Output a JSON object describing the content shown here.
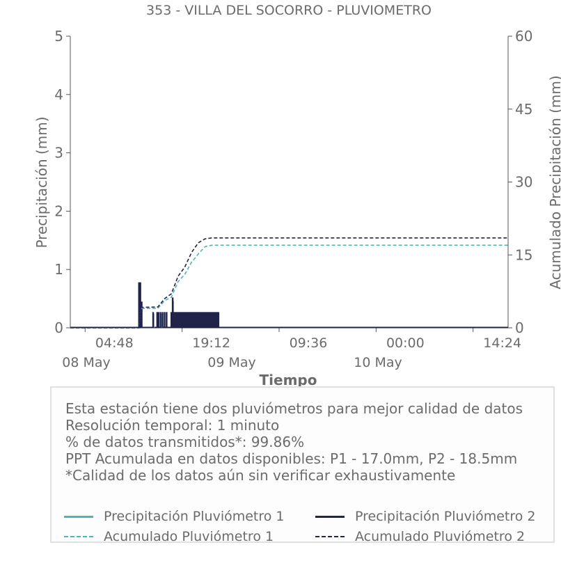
{
  "chart_data": {
    "type": "bar+line",
    "title": "353 - VILLA DEL SOCORRO - PLUVIOMETRO",
    "xlabel": "Tiempo",
    "ylabel_left": "Precipitación (mm)",
    "ylabel_right": "Acumulado Precipitación (mm)",
    "ylim_left": [
      0,
      5
    ],
    "ylim_right": [
      0,
      60
    ],
    "yticks_left": [
      "0",
      "1",
      "2",
      "3",
      "4",
      "5"
    ],
    "yticks_right": [
      "0",
      "15",
      "30",
      "45",
      "60"
    ],
    "xticks": [
      "04:48",
      "19:12",
      "09:36",
      "00:00",
      "14:24"
    ],
    "date_labels": [
      "08 May",
      "09 May",
      "10 May"
    ],
    "grid": false,
    "x_range_hours": [
      0,
      65
    ],
    "series": [
      {
        "name": "Precipitación Pluviómetro 1",
        "style": "bar",
        "color": "#4fb3bf",
        "points": [
          [
            10.4,
            0.72
          ],
          [
            12.4,
            0.24
          ],
          [
            13.1,
            0.24
          ],
          [
            13.5,
            0.24
          ],
          [
            14.0,
            0.24
          ],
          [
            15.3,
            0.46
          ],
          [
            15.7,
            0.24
          ],
          [
            16.0,
            0.24
          ],
          [
            16.4,
            0.24
          ],
          [
            16.8,
            0.24
          ],
          [
            17.2,
            0.24
          ],
          [
            17.6,
            0.24
          ],
          [
            18.0,
            0.24
          ],
          [
            18.4,
            0.24
          ],
          [
            18.8,
            0.24
          ],
          [
            19.2,
            0.24
          ],
          [
            19.6,
            0.24
          ],
          [
            20.0,
            0.24
          ],
          [
            20.4,
            0.24
          ],
          [
            20.8,
            0.24
          ],
          [
            21.2,
            0.24
          ],
          [
            21.6,
            0.24
          ],
          [
            22.0,
            0.24
          ]
        ]
      },
      {
        "name": "Precipitación Pluviómetro 2",
        "style": "bar",
        "color": "#20234a",
        "points": [
          [
            10.2,
            0.78
          ],
          [
            10.4,
            0.78
          ],
          [
            10.6,
            0.45
          ],
          [
            12.3,
            0.27
          ],
          [
            12.9,
            0.27
          ],
          [
            13.1,
            0.27
          ],
          [
            13.4,
            0.27
          ],
          [
            13.7,
            0.27
          ],
          [
            14.0,
            0.27
          ],
          [
            14.3,
            0.27
          ],
          [
            15.0,
            0.27
          ],
          [
            15.2,
            0.52
          ],
          [
            15.4,
            0.27
          ],
          [
            15.6,
            0.27
          ],
          [
            15.8,
            0.27
          ],
          [
            16.0,
            0.27
          ],
          [
            16.2,
            0.27
          ],
          [
            16.4,
            0.27
          ],
          [
            16.6,
            0.27
          ],
          [
            16.8,
            0.27
          ],
          [
            17.0,
            0.27
          ],
          [
            17.2,
            0.27
          ],
          [
            17.4,
            0.27
          ],
          [
            17.6,
            0.27
          ],
          [
            17.8,
            0.27
          ],
          [
            18.0,
            0.27
          ],
          [
            18.2,
            0.27
          ],
          [
            18.4,
            0.27
          ],
          [
            18.6,
            0.27
          ],
          [
            18.8,
            0.27
          ],
          [
            19.0,
            0.27
          ],
          [
            19.2,
            0.27
          ],
          [
            19.4,
            0.27
          ],
          [
            19.6,
            0.27
          ],
          [
            19.8,
            0.27
          ],
          [
            20.0,
            0.27
          ],
          [
            20.2,
            0.27
          ],
          [
            20.4,
            0.27
          ],
          [
            20.6,
            0.27
          ],
          [
            20.8,
            0.27
          ],
          [
            21.0,
            0.27
          ],
          [
            21.2,
            0.27
          ],
          [
            21.4,
            0.27
          ],
          [
            21.6,
            0.27
          ],
          [
            21.8,
            0.27
          ],
          [
            22.0,
            0.27
          ]
        ]
      },
      {
        "name": "Acumulado Pluviómetro 1",
        "style": "dashed",
        "color": "#4fb3bf",
        "points": [
          [
            0,
            0
          ],
          [
            10.2,
            0
          ],
          [
            10.4,
            4.0
          ],
          [
            13.0,
            4.0
          ],
          [
            14.0,
            5.6
          ],
          [
            15.0,
            6.3
          ],
          [
            16.0,
            9.5
          ],
          [
            17.0,
            11.0
          ],
          [
            18.0,
            13.5
          ],
          [
            19.0,
            15.2
          ],
          [
            20.0,
            16.7
          ],
          [
            21.0,
            17.0
          ],
          [
            65.0,
            17.0
          ]
        ]
      },
      {
        "name": "Acumulado Pluviómetro 2",
        "style": "dashed",
        "color": "#20234a",
        "points": [
          [
            0,
            0
          ],
          [
            10.2,
            0
          ],
          [
            10.4,
            4.2
          ],
          [
            13.0,
            4.3
          ],
          [
            14.0,
            6.0
          ],
          [
            15.0,
            7.0
          ],
          [
            16.0,
            10.6
          ],
          [
            17.0,
            12.5
          ],
          [
            18.0,
            15.5
          ],
          [
            19.0,
            17.5
          ],
          [
            20.0,
            18.3
          ],
          [
            21.0,
            18.5
          ],
          [
            65.0,
            18.5
          ]
        ]
      }
    ]
  },
  "info": {
    "lines": [
      "Esta estación tiene dos pluviómetros para mejor calidad de datos",
      "Resolución temporal: 1 minuto",
      "% de datos transmitidos*: 99.86%",
      "PPT Acumulada en datos disponibles: P1 - 17.0mm, P2 - 18.5mm",
      "*Calidad de los datos aún sin verificar exhaustivamente"
    ]
  },
  "legend": {
    "items": [
      {
        "label": "Precipitación Pluviómetro 1",
        "color": "#4fb3bf",
        "style": "solid"
      },
      {
        "label": "Precipitación Pluviómetro 2",
        "color": "#20234a",
        "style": "solid"
      },
      {
        "label": "Acumulado Pluviómetro 1",
        "color": "#4fb3bf",
        "style": "dashed"
      },
      {
        "label": "Acumulado Pluviómetro 2",
        "color": "#20234a",
        "style": "dashed"
      }
    ]
  }
}
